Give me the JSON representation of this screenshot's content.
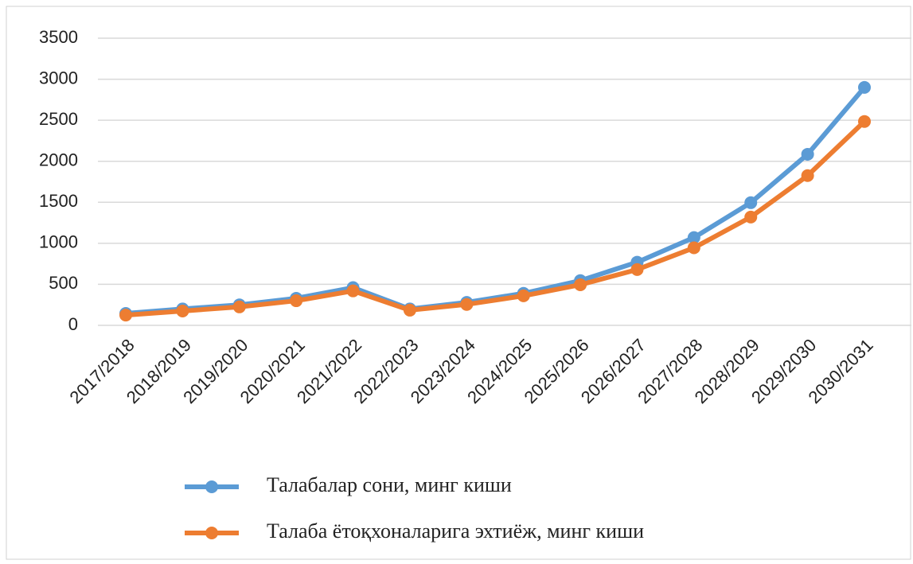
{
  "chart_data": {
    "type": "line",
    "categories": [
      "2017/2018",
      "2018/2019",
      "2019/2020",
      "2020/2021",
      "2021/2022",
      "2022/2023",
      "2023/2024",
      "2024/2025",
      "2025/2026",
      "2026/2027",
      "2027/2028",
      "2028/2029",
      "2029/2030",
      "2030/2031"
    ],
    "series": [
      {
        "name": "Талабалар сони, минг киши",
        "color": "#5b9bd5",
        "values": [
          145,
          200,
          250,
          330,
          460,
          200,
          280,
          390,
          545,
          770,
          1070,
          1495,
          2085,
          2900
        ]
      },
      {
        "name": "Талаба ётоқхоналарига эхтиёж, минг киши",
        "color": "#ed7d31",
        "values": [
          125,
          175,
          225,
          300,
          420,
          185,
          255,
          360,
          495,
          680,
          945,
          1320,
          1825,
          2485
        ]
      }
    ],
    "ylim": [
      0,
      3500
    ],
    "yticks": [
      0,
      500,
      1000,
      1500,
      2000,
      2500,
      3000,
      3500
    ],
    "grid": true,
    "legend": "bottom"
  }
}
